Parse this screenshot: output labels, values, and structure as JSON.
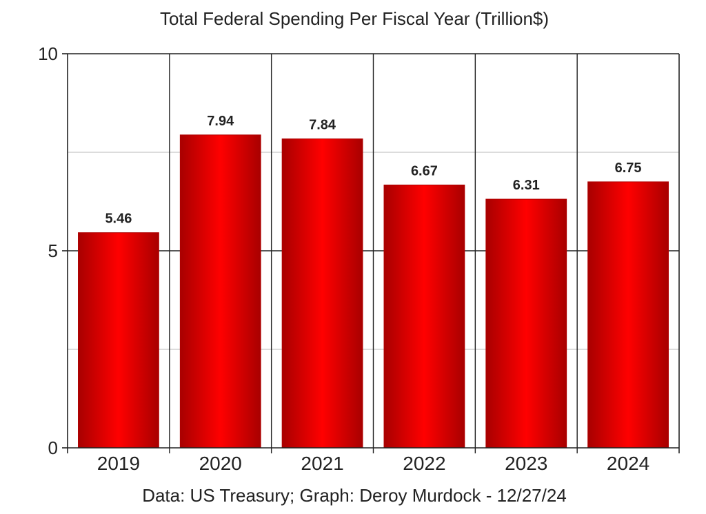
{
  "chart_data": {
    "type": "bar",
    "title": "Total Federal Spending Per Fiscal Year (Trillion$)",
    "xlabel": "",
    "ylabel": "",
    "categories": [
      "2019",
      "2020",
      "2021",
      "2022",
      "2023",
      "2024"
    ],
    "values": [
      5.46,
      7.94,
      7.84,
      6.67,
      6.31,
      6.75
    ],
    "data_labels": [
      "5.46",
      "7.94",
      "7.84",
      "6.67",
      "6.31",
      "6.75"
    ],
    "ylim": [
      0,
      10
    ],
    "yticks": [
      0,
      5,
      10
    ],
    "ytick_labels": [
      "0",
      "5",
      "10"
    ],
    "minor_gridlines": [
      2.5,
      7.5
    ],
    "grid": true,
    "legend": "none",
    "bar_color": "#ff0000",
    "bar_edge_color": "#a80000",
    "footer": "Data: US Treasury; Graph: Deroy Murdock - 12/27/24"
  }
}
